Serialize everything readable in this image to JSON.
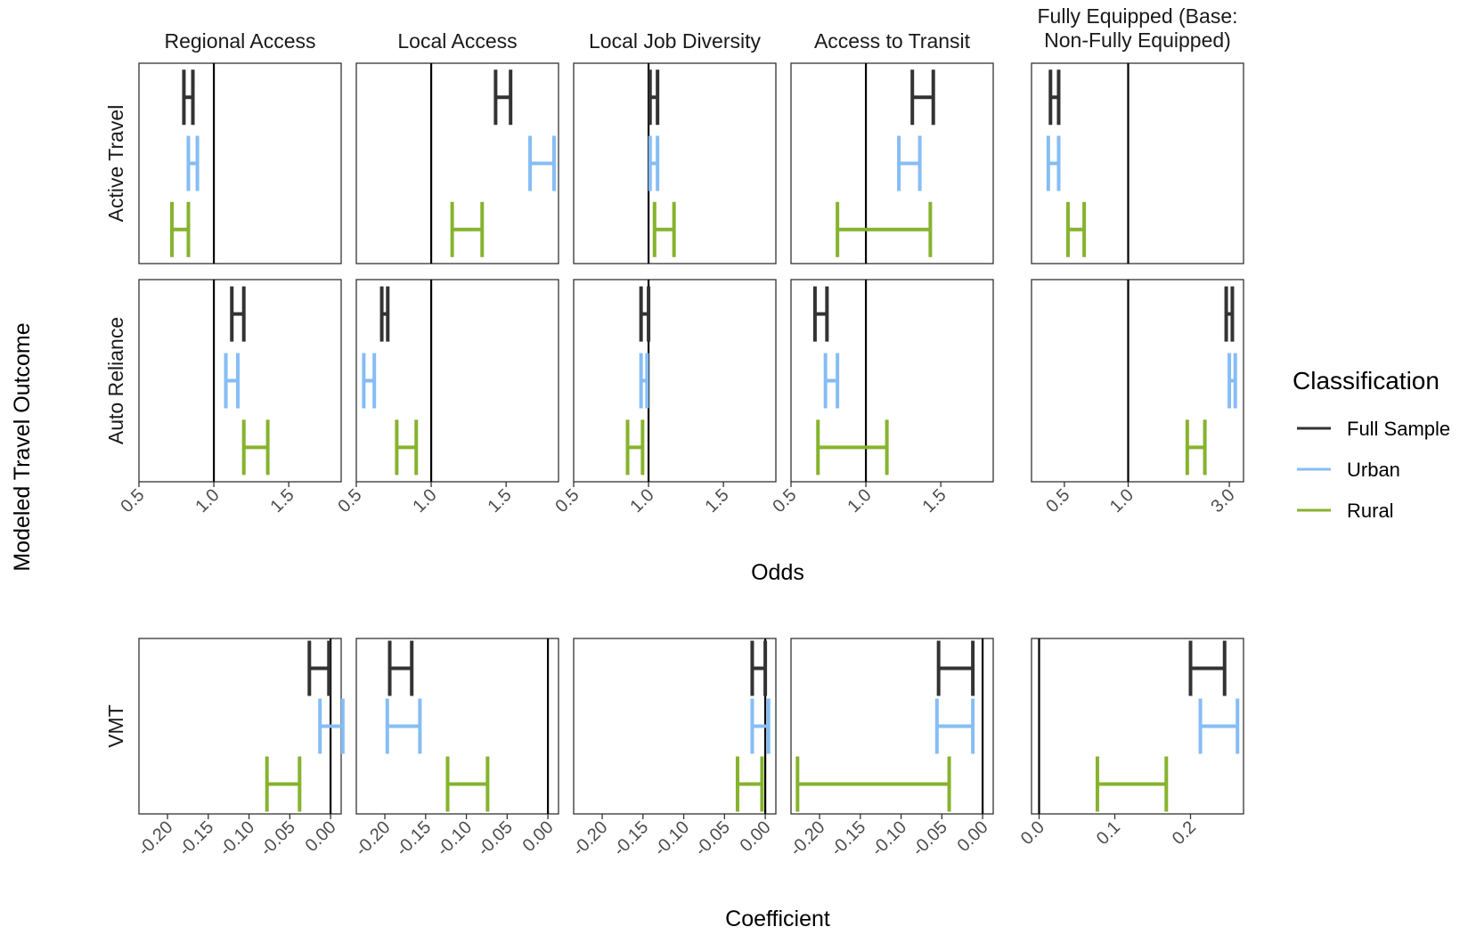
{
  "chart_data": {
    "type": "errorbar",
    "y_axis_title": "Modeled Travel Outcome",
    "odds_axis_title": "Odds",
    "coef_axis_title": "Coefficient",
    "legend": {
      "title": "Classification",
      "placement": "right",
      "items": [
        {
          "name": "Full Sample",
          "color": "#333333"
        },
        {
          "name": "Urban",
          "color": "#86bdf5"
        },
        {
          "name": "Rural",
          "color": "#86b32e"
        }
      ]
    },
    "columns": [
      "Regional Access",
      "Local Access",
      "Local Job Diversity",
      "Access to Transit",
      "Fully Equipped (Base: Non-Fully Equipped)"
    ],
    "column_label_lines": [
      [
        "Regional Access"
      ],
      [
        "Local Access"
      ],
      [
        "Local Job Diversity"
      ],
      [
        "Access to Transit"
      ],
      [
        "Fully Equipped (Base:",
        "Non-Fully Equipped)"
      ]
    ],
    "rows": [
      "Active Travel",
      "Auto Reliance",
      "VMT"
    ],
    "odds_ticks_common": [
      "0.5",
      "1.0",
      "1.5"
    ],
    "odds_ticks_fully_equipped": [
      "0.5",
      "1.0",
      "3.0"
    ],
    "coef_ticks_common": [
      "-0.20",
      "-0.15",
      "-0.10",
      "-0.05",
      "0.00"
    ],
    "coef_ticks_fully_equipped": [
      "0.0",
      "0.1",
      "0.2"
    ],
    "odds_xlim_common": [
      0.5,
      1.85
    ],
    "coef_xlim_common": [
      -0.235,
      0.013
    ],
    "coef_xlim_fully_equipped": [
      -0.01,
      0.27
    ],
    "panels": [
      {
        "row": 0,
        "col": 0,
        "ref": 1.0,
        "bars": [
          {
            "series": "Full Sample",
            "low": 0.8,
            "high": 0.86
          },
          {
            "series": "Urban",
            "low": 0.83,
            "high": 0.89
          },
          {
            "series": "Rural",
            "low": 0.72,
            "high": 0.83
          }
        ]
      },
      {
        "row": 0,
        "col": 1,
        "ref": 1.0,
        "bars": [
          {
            "series": "Full Sample",
            "low": 1.43,
            "high": 1.53
          },
          {
            "series": "Urban",
            "low": 1.66,
            "high": 1.82
          },
          {
            "series": "Rural",
            "low": 1.14,
            "high": 1.34
          }
        ]
      },
      {
        "row": 0,
        "col": 2,
        "ref": 1.0,
        "bars": [
          {
            "series": "Full Sample",
            "low": 1.01,
            "high": 1.06
          },
          {
            "series": "Urban",
            "low": 1.01,
            "high": 1.06
          },
          {
            "series": "Rural",
            "low": 1.04,
            "high": 1.17
          }
        ]
      },
      {
        "row": 0,
        "col": 3,
        "ref": 1.0,
        "bars": [
          {
            "series": "Full Sample",
            "low": 1.31,
            "high": 1.45
          },
          {
            "series": "Urban",
            "low": 1.22,
            "high": 1.36
          },
          {
            "series": "Rural",
            "low": 0.81,
            "high": 1.43
          }
        ]
      },
      {
        "row": 0,
        "col": 4,
        "ref": 1.0,
        "bars": [
          {
            "series": "Full Sample",
            "low": 0.43,
            "high": 0.47
          },
          {
            "series": "Urban",
            "low": 0.42,
            "high": 0.47
          },
          {
            "series": "Rural",
            "low": 0.52,
            "high": 0.62
          }
        ]
      },
      {
        "row": 1,
        "col": 0,
        "ref": 1.0,
        "bars": [
          {
            "series": "Full Sample",
            "low": 1.12,
            "high": 1.2
          },
          {
            "series": "Urban",
            "low": 1.08,
            "high": 1.16
          },
          {
            "series": "Rural",
            "low": 1.2,
            "high": 1.36
          }
        ]
      },
      {
        "row": 1,
        "col": 1,
        "ref": 1.0,
        "bars": [
          {
            "series": "Full Sample",
            "low": 0.67,
            "high": 0.71
          },
          {
            "series": "Urban",
            "low": 0.55,
            "high": 0.62
          },
          {
            "series": "Rural",
            "low": 0.77,
            "high": 0.9
          }
        ]
      },
      {
        "row": 1,
        "col": 2,
        "ref": 1.0,
        "bars": [
          {
            "series": "Full Sample",
            "low": 0.95,
            "high": 1.0
          },
          {
            "series": "Urban",
            "low": 0.95,
            "high": 0.99
          },
          {
            "series": "Rural",
            "low": 0.86,
            "high": 0.96
          }
        ]
      },
      {
        "row": 1,
        "col": 3,
        "ref": 1.0,
        "bars": [
          {
            "series": "Full Sample",
            "low": 0.66,
            "high": 0.74
          },
          {
            "series": "Urban",
            "low": 0.73,
            "high": 0.81
          },
          {
            "series": "Rural",
            "low": 0.68,
            "high": 1.14
          }
        ]
      },
      {
        "row": 1,
        "col": 4,
        "ref": 1.0,
        "bars": [
          {
            "series": "Full Sample",
            "low": 2.9,
            "high": 3.1
          },
          {
            "series": "Urban",
            "low": 3.0,
            "high": 3.2
          },
          {
            "series": "Rural",
            "low": 1.9,
            "high": 2.3
          }
        ]
      },
      {
        "row": 2,
        "col": 0,
        "ref": 0.0,
        "bars": [
          {
            "series": "Full Sample",
            "low": -0.026,
            "high": -0.002
          },
          {
            "series": "Urban",
            "low": -0.013,
            "high": 0.015
          },
          {
            "series": "Rural",
            "low": -0.078,
            "high": -0.038
          }
        ]
      },
      {
        "row": 2,
        "col": 1,
        "ref": 0.0,
        "bars": [
          {
            "series": "Full Sample",
            "low": -0.194,
            "high": -0.167
          },
          {
            "series": "Urban",
            "low": -0.197,
            "high": -0.157
          },
          {
            "series": "Rural",
            "low": -0.123,
            "high": -0.074
          }
        ]
      },
      {
        "row": 2,
        "col": 2,
        "ref": 0.0,
        "bars": [
          {
            "series": "Full Sample",
            "low": -0.016,
            "high": 0.0
          },
          {
            "series": "Urban",
            "low": -0.016,
            "high": 0.004
          },
          {
            "series": "Rural",
            "low": -0.034,
            "high": -0.004
          }
        ]
      },
      {
        "row": 2,
        "col": 3,
        "ref": 0.0,
        "bars": [
          {
            "series": "Full Sample",
            "low": -0.054,
            "high": -0.012
          },
          {
            "series": "Urban",
            "low": -0.056,
            "high": -0.012
          },
          {
            "series": "Rural",
            "low": -0.227,
            "high": -0.041
          }
        ]
      },
      {
        "row": 2,
        "col": 4,
        "ref": 0.0,
        "bars": [
          {
            "series": "Full Sample",
            "low": 0.2,
            "high": 0.245
          },
          {
            "series": "Urban",
            "low": 0.213,
            "high": 0.262
          },
          {
            "series": "Rural",
            "low": 0.077,
            "high": 0.168
          }
        ]
      }
    ]
  }
}
